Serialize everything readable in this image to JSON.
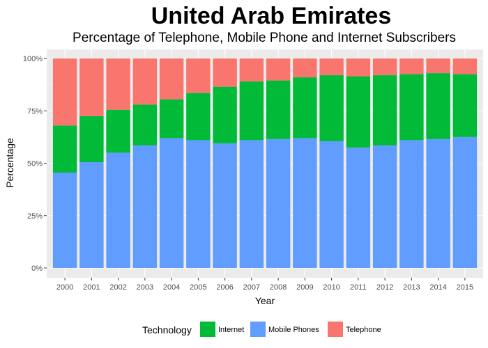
{
  "chart_data": {
    "type": "bar",
    "stacked": true,
    "title": "United Arab Emirates",
    "subtitle": "Percentage of Telephone, Mobile Phone and Internet Subscribers",
    "xlabel": "Year",
    "ylabel": "Percentage",
    "ylim": [
      0,
      100
    ],
    "yticks": [
      "0%",
      "25%",
      "50%",
      "75%",
      "100%"
    ],
    "grid": true,
    "legend_position": "bottom",
    "legend_title": "Technology",
    "categories": [
      "2000",
      "2001",
      "2002",
      "2003",
      "2004",
      "2005",
      "2006",
      "2007",
      "2008",
      "2009",
      "2010",
      "2011",
      "2012",
      "2013",
      "2014",
      "2015"
    ],
    "series": [
      {
        "name": "Mobile Phones",
        "color": "#619CFF",
        "values": [
          45.5,
          50.5,
          55,
          58.5,
          62,
          61,
          59.5,
          61,
          61.5,
          62,
          60.5,
          57.5,
          58.5,
          61,
          61.5,
          62.5
        ]
      },
      {
        "name": "Internet",
        "color": "#00BA38",
        "values": [
          22.5,
          22,
          20.5,
          19.5,
          18.5,
          22.5,
          27,
          28,
          28,
          29,
          31.5,
          34,
          33.5,
          31.5,
          31.5,
          30
        ]
      },
      {
        "name": "Telephone",
        "color": "#F8766D",
        "values": [
          32,
          27.5,
          24.5,
          22,
          19.5,
          16.5,
          13.5,
          11,
          10.5,
          9,
          8,
          8.5,
          8,
          7.5,
          7,
          7.5
        ]
      }
    ],
    "legend_order": [
      "Internet",
      "Mobile Phones",
      "Telephone"
    ]
  }
}
